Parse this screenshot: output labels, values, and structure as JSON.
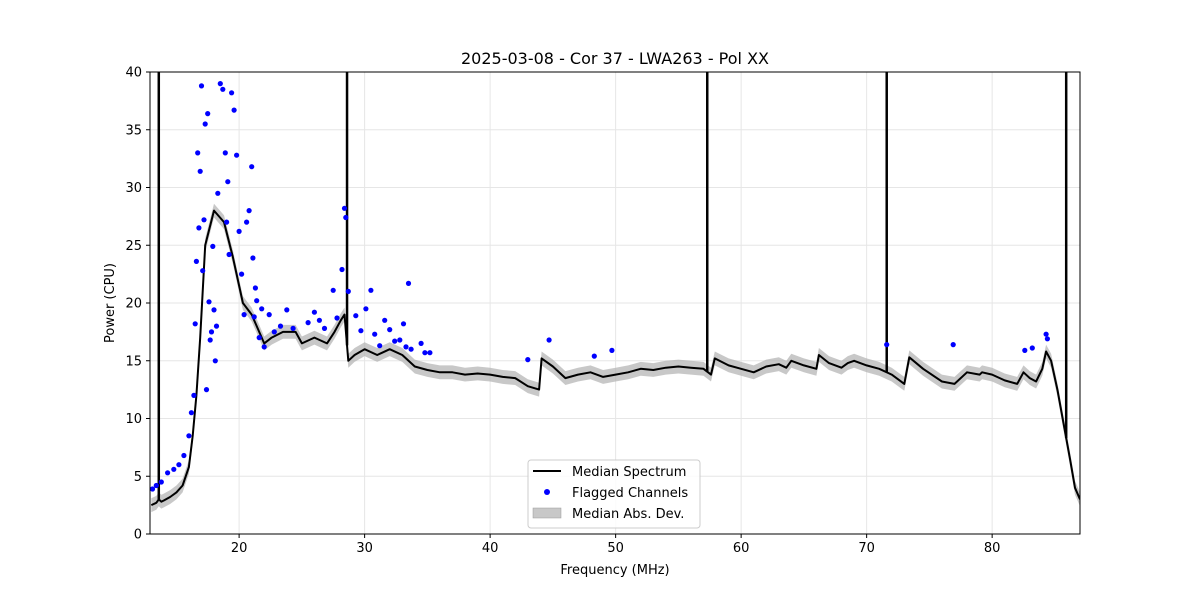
{
  "chart_data": {
    "type": "line",
    "title": "2025-03-08 - Cor 37 - LWA263 - Pol XX",
    "xlabel": "Frequency (MHz)",
    "ylabel": "Power (CPU)",
    "xlim": [
      12.9,
      87.0
    ],
    "ylim": [
      0,
      40
    ],
    "x_ticks": [
      20,
      30,
      40,
      50,
      60,
      70,
      80
    ],
    "y_ticks": [
      0,
      5,
      10,
      15,
      20,
      25,
      30,
      35,
      40
    ],
    "x_tick_labels": [
      "20",
      "30",
      "40",
      "50",
      "60",
      "70",
      "80"
    ],
    "y_tick_labels": [
      "0",
      "5",
      "10",
      "15",
      "20",
      "25",
      "30",
      "35",
      "40"
    ],
    "grid": true,
    "legend_position": "bottom-center",
    "legend": [
      "Median Spectrum",
      "Flagged Channels",
      "Median Abs. Dev."
    ],
    "colors": {
      "median": "#000000",
      "flagged": "#0000ff",
      "mad": "#b0b0b0"
    },
    "median_spectrum": {
      "name": "Median Spectrum",
      "x": [
        13.0,
        13.4,
        13.6,
        13.8,
        14.0,
        14.5,
        15.0,
        15.5,
        16.0,
        16.3,
        16.6,
        16.9,
        17.3,
        18.0,
        18.8,
        19.5,
        20.3,
        21.0,
        21.6,
        22.0,
        22.6,
        23.5,
        24.5,
        25.0,
        26.0,
        27.0,
        27.6,
        28.1,
        28.4,
        28.7,
        29.2,
        30.0,
        31.0,
        32.0,
        33.0,
        34.0,
        35.0,
        36.0,
        37.0,
        38.0,
        39.0,
        40.0,
        41.0,
        42.0,
        43.0,
        43.9,
        44.1,
        45.0,
        46.0,
        47.0,
        48.0,
        49.0,
        50.0,
        51.0,
        52.0,
        53.0,
        54.0,
        55.0,
        56.0,
        57.0,
        57.6,
        57.9,
        59.0,
        60.0,
        61.0,
        62.0,
        63.0,
        63.6,
        64.0,
        65.0,
        66.0,
        66.2,
        67.0,
        68.0,
        68.5,
        69.0,
        70.0,
        71.0,
        72.0,
        73.0,
        73.4,
        74.5,
        76.0,
        77.0,
        78.0,
        79.0,
        79.2,
        80.0,
        81.0,
        82.0,
        82.5,
        83.0,
        83.5,
        84.0,
        84.3,
        84.7,
        85.2,
        85.7,
        86.2,
        86.6,
        87.0
      ],
      "y": [
        2.5,
        2.7,
        3.0,
        2.8,
        2.9,
        3.2,
        3.6,
        4.2,
        5.8,
        8.5,
        12.0,
        17.0,
        25.0,
        28.0,
        27.0,
        24.0,
        20.0,
        19.0,
        17.5,
        16.5,
        17.0,
        17.5,
        17.5,
        16.5,
        17.0,
        16.5,
        17.5,
        18.5,
        19.0,
        15.0,
        15.5,
        16.0,
        15.5,
        16.0,
        15.5,
        14.5,
        14.2,
        14.0,
        14.0,
        13.8,
        13.9,
        13.8,
        13.6,
        13.5,
        12.8,
        12.5,
        15.2,
        14.5,
        13.5,
        13.8,
        14.0,
        13.6,
        13.8,
        14.0,
        14.3,
        14.2,
        14.4,
        14.5,
        14.4,
        14.3,
        13.8,
        15.2,
        14.6,
        14.3,
        14.0,
        14.5,
        14.7,
        14.4,
        15.0,
        14.6,
        14.3,
        15.5,
        14.8,
        14.4,
        14.8,
        15.0,
        14.6,
        14.3,
        13.8,
        13.0,
        15.3,
        14.3,
        13.2,
        13.0,
        14.0,
        13.8,
        14.0,
        13.8,
        13.3,
        13.0,
        14.0,
        13.5,
        13.2,
        14.3,
        15.8,
        15.0,
        12.5,
        9.5,
        6.5,
        4.0,
        3.0
      ]
    },
    "spikes": [
      {
        "x": 13.6,
        "y_max": 40
      },
      {
        "x": 28.6,
        "y_max": 40
      },
      {
        "x": 57.3,
        "y_max": 40
      },
      {
        "x": 71.6,
        "y_max": 40
      },
      {
        "x": 85.9,
        "y_max": 40
      }
    ],
    "mad_halfwidth": 0.6,
    "flagged_channels": {
      "name": "Flagged Channels",
      "x": [
        13.1,
        13.4,
        13.8,
        14.3,
        14.8,
        15.2,
        15.6,
        16.0,
        16.2,
        16.4,
        16.5,
        16.6,
        16.7,
        16.8,
        16.9,
        17.0,
        17.1,
        17.2,
        17.3,
        17.4,
        17.5,
        17.6,
        17.7,
        17.8,
        17.9,
        18.0,
        18.1,
        18.2,
        18.3,
        18.5,
        18.7,
        18.9,
        19.0,
        19.1,
        19.2,
        19.4,
        19.6,
        19.8,
        20.0,
        20.2,
        20.4,
        20.6,
        20.8,
        21.0,
        21.1,
        21.2,
        21.3,
        21.4,
        21.6,
        21.8,
        22.0,
        22.4,
        22.8,
        23.3,
        23.8,
        24.3,
        25.5,
        26.0,
        26.4,
        26.8,
        27.5,
        27.8,
        28.2,
        28.4,
        28.5,
        28.7,
        29.3,
        29.7,
        30.1,
        30.5,
        30.8,
        31.2,
        31.6,
        32.0,
        32.4,
        32.8,
        33.1,
        33.3,
        33.5,
        33.7,
        34.5,
        34.8,
        35.2,
        43.0,
        44.7,
        48.3,
        49.7,
        71.6,
        76.9,
        82.6,
        83.2,
        84.3,
        84.4
      ],
      "y": [
        3.9,
        4.2,
        4.5,
        5.3,
        5.6,
        6.0,
        6.8,
        8.5,
        10.5,
        12.0,
        18.2,
        23.6,
        33.0,
        26.5,
        31.4,
        38.8,
        22.8,
        27.2,
        35.5,
        12.5,
        36.4,
        20.1,
        16.8,
        17.5,
        24.9,
        19.4,
        15.0,
        18.0,
        29.5,
        39.0,
        38.5,
        33.0,
        27.0,
        30.5,
        24.2,
        38.2,
        36.7,
        32.8,
        26.2,
        22.5,
        19.0,
        27.0,
        28.0,
        31.8,
        23.9,
        18.8,
        21.3,
        20.2,
        17.0,
        19.5,
        16.2,
        19.0,
        17.5,
        18.0,
        19.4,
        17.8,
        18.3,
        19.2,
        18.5,
        17.8,
        21.1,
        18.7,
        22.9,
        28.2,
        27.4,
        21.0,
        18.9,
        17.6,
        19.5,
        21.1,
        17.3,
        16.3,
        18.5,
        17.7,
        16.7,
        16.8,
        18.2,
        16.2,
        21.7,
        16.0,
        16.5,
        15.7,
        15.7,
        15.1,
        16.8,
        15.4,
        15.9,
        16.4,
        16.4,
        15.9,
        16.1,
        17.3,
        16.9
      ]
    }
  }
}
